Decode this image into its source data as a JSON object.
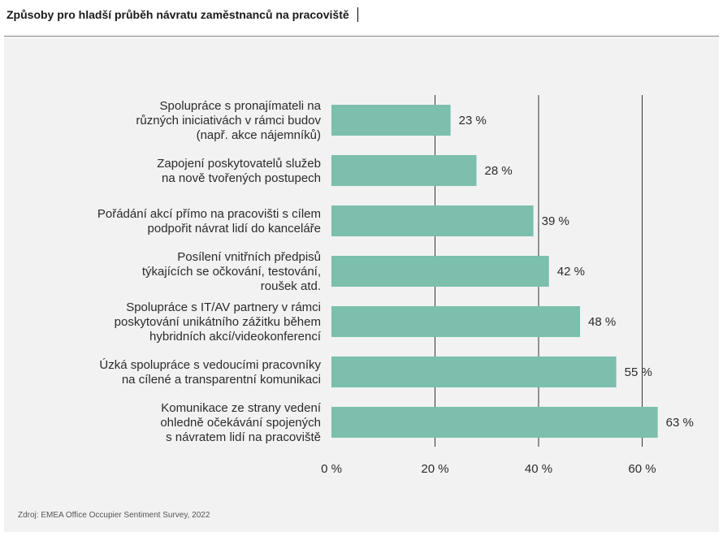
{
  "header": {
    "title": "Způsoby pro hladší průběh návratu zaměstnanců na pracoviště"
  },
  "footer": {
    "source": "Zdroj: EMEA Office Occupier Sentiment Survey, 2022"
  },
  "colors": {
    "bar": "#7bbfac",
    "gridline": "#333333",
    "panel": "#f2f2f2"
  },
  "chart_data": {
    "type": "bar",
    "orientation": "horizontal",
    "title": "",
    "xlabel": "",
    "ylabel": "",
    "xlim": [
      0,
      60
    ],
    "grid": true,
    "categories": [
      [
        "Spolupráce s pronajímateli na",
        "různých iniciativách v rámci budov",
        "(např. akce nájemníků)"
      ],
      [
        "Zapojení poskytovatelů služeb",
        "na nově tvořených postupech"
      ],
      [
        "Pořádání akcí přímo na pracovišti s cílem",
        "podpořit návrat lidí do kanceláře"
      ],
      [
        "Posílení vnitřních předpisů",
        "týkajících se očkování, testování,",
        "roušek atd."
      ],
      [
        "Spolupráce s IT/AV partnery v rámci",
        "poskytování unikátního zážitku během",
        "hybridních akcí/videokonferencí"
      ],
      [
        "Úzká spolupráce s vedoucími pracovníky",
        "na cílené a transparentní komunikaci"
      ],
      [
        "Komunikace ze strany vedení",
        "ohledně očekávání spojených",
        "s návratem lidí na pracoviště"
      ]
    ],
    "values": [
      23,
      28,
      39,
      42,
      48,
      55,
      63
    ],
    "value_labels": [
      "23 %",
      "28 %",
      "39 %",
      "42 %",
      "48 %",
      "55 %",
      "63 %"
    ],
    "ticks": [
      0,
      20,
      40,
      60
    ],
    "tick_labels": [
      "0 %",
      "20 %",
      "40 %",
      "60 %"
    ]
  }
}
